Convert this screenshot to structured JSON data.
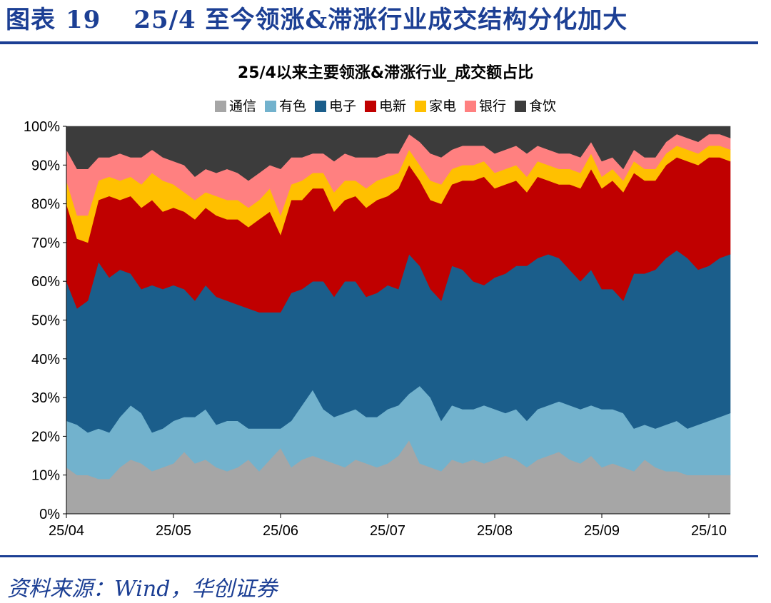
{
  "figure": {
    "label": "图表",
    "number": "19",
    "title": "25/4 至今领涨&滞涨行业成交结构分化加大",
    "source": "资料来源：Wind，华创证券"
  },
  "colors": {
    "brand": "#1c3f94"
  },
  "chart_data": {
    "type": "area",
    "stacked": true,
    "normalized": true,
    "title": "25/4以来主要领涨&滞涨行业_成交额占比",
    "legend_position": "top",
    "y_ticks": [
      "0%",
      "10%",
      "20%",
      "30%",
      "40%",
      "50%",
      "60%",
      "70%",
      "80%",
      "90%",
      "100%"
    ],
    "ylim": [
      0,
      100
    ],
    "x_ticks": [
      {
        "label": "25/04",
        "index": 0
      },
      {
        "label": "25/05",
        "index": 20
      },
      {
        "label": "25/06",
        "index": 40
      },
      {
        "label": "25/07",
        "index": 60
      },
      {
        "label": "25/08",
        "index": 80
      },
      {
        "label": "25/09",
        "index": 100
      },
      {
        "label": "25/10",
        "index": 120
      }
    ],
    "x": [
      0,
      2,
      4,
      6,
      8,
      10,
      12,
      14,
      16,
      18,
      20,
      22,
      24,
      26,
      28,
      30,
      32,
      34,
      36,
      38,
      40,
      42,
      44,
      46,
      48,
      50,
      52,
      54,
      56,
      58,
      60,
      62,
      64,
      66,
      68,
      70,
      72,
      74,
      76,
      78,
      80,
      82,
      84,
      86,
      88,
      90,
      92,
      94,
      96,
      98,
      100,
      102,
      104,
      106,
      108,
      110,
      112,
      114,
      116,
      118,
      120,
      122,
      124
    ],
    "series": [
      {
        "name": "通信",
        "color": "#a6a6a6",
        "values": [
          12,
          10,
          10,
          9,
          9,
          12,
          14,
          13,
          11,
          12,
          13,
          16,
          13,
          14,
          12,
          11,
          12,
          14,
          11,
          14,
          17,
          12,
          14,
          15,
          14,
          13,
          12,
          14,
          13,
          12,
          13,
          15,
          19,
          13,
          12,
          11,
          14,
          13,
          14,
          13,
          14,
          15,
          14,
          12,
          14,
          15,
          16,
          14,
          13,
          15,
          12,
          13,
          12,
          11,
          14,
          12,
          11,
          11,
          10,
          10,
          10,
          10,
          10
        ]
      },
      {
        "name": "有色",
        "color": "#72b2cd",
        "values": [
          12,
          13,
          11,
          13,
          12,
          13,
          14,
          13,
          10,
          10,
          11,
          9,
          12,
          13,
          11,
          13,
          12,
          8,
          11,
          8,
          5,
          12,
          14,
          17,
          13,
          12,
          14,
          13,
          12,
          13,
          14,
          13,
          12,
          20,
          18,
          13,
          14,
          14,
          13,
          15,
          13,
          11,
          13,
          12,
          13,
          13,
          13,
          14,
          14,
          13,
          15,
          14,
          14,
          11,
          9,
          10,
          12,
          13,
          12,
          13,
          14,
          15,
          16
        ]
      },
      {
        "name": "电子",
        "color": "#1b5e8b",
        "values": [
          36,
          30,
          34,
          43,
          40,
          38,
          34,
          32,
          38,
          36,
          35,
          33,
          30,
          32,
          33,
          31,
          30,
          31,
          30,
          30,
          30,
          33,
          30,
          28,
          33,
          31,
          34,
          33,
          31,
          32,
          32,
          30,
          36,
          31,
          28,
          31,
          36,
          36,
          33,
          31,
          34,
          36,
          37,
          40,
          39,
          39,
          37,
          35,
          33,
          35,
          31,
          31,
          29,
          40,
          39,
          41,
          43,
          44,
          44,
          40,
          40,
          41,
          41
        ]
      },
      {
        "name": "电新",
        "color": "#c00000",
        "values": [
          20,
          18,
          15,
          16,
          21,
          18,
          20,
          21,
          22,
          20,
          20,
          20,
          21,
          20,
          21,
          21,
          22,
          21,
          24,
          26,
          20,
          24,
          23,
          24,
          24,
          22,
          21,
          22,
          23,
          24,
          23,
          26,
          23,
          22,
          23,
          25,
          21,
          23,
          26,
          28,
          23,
          23,
          22,
          19,
          21,
          19,
          19,
          22,
          24,
          26,
          26,
          28,
          28,
          26,
          24,
          23,
          24,
          24,
          25,
          27,
          28,
          26,
          24
        ]
      },
      {
        "name": "家电",
        "color": "#ffc000",
        "values": [
          6,
          6,
          7,
          5,
          5,
          5,
          5,
          6,
          7,
          8,
          6,
          5,
          5,
          4,
          5,
          5,
          5,
          5,
          5,
          6,
          5,
          4,
          5,
          4,
          4,
          5,
          5,
          4,
          5,
          5,
          5,
          4,
          4,
          4,
          5,
          5,
          4,
          4,
          4,
          4,
          4,
          4,
          4,
          4,
          4,
          4,
          4,
          4,
          4,
          4,
          3,
          3,
          3,
          3,
          3,
          3,
          3,
          3,
          3,
          3,
          3,
          3,
          3
        ]
      },
      {
        "name": "银行",
        "color": "#ff8080",
        "values": [
          8,
          12,
          12,
          6,
          5,
          7,
          5,
          7,
          6,
          6,
          6,
          7,
          6,
          6,
          6,
          8,
          7,
          7,
          7,
          6,
          12,
          7,
          6,
          5,
          5,
          8,
          7,
          6,
          8,
          6,
          6,
          5,
          4,
          6,
          7,
          7,
          5,
          5,
          5,
          4,
          5,
          5,
          5,
          6,
          4,
          4,
          4,
          4,
          4,
          3,
          4,
          3,
          3,
          3,
          3,
          3,
          3,
          3,
          3,
          3,
          3,
          3,
          3
        ]
      },
      {
        "name": "食饮",
        "color": "#3c3c3c",
        "values": [
          6,
          11,
          11,
          8,
          8,
          7,
          8,
          8,
          6,
          8,
          9,
          10,
          13,
          11,
          12,
          11,
          12,
          14,
          12,
          10,
          11,
          8,
          8,
          7,
          7,
          9,
          7,
          8,
          8,
          8,
          7,
          7,
          2,
          4,
          7,
          8,
          6,
          5,
          5,
          5,
          7,
          6,
          5,
          7,
          5,
          6,
          7,
          7,
          8,
          4,
          9,
          8,
          11,
          6,
          8,
          8,
          4,
          2,
          3,
          4,
          2,
          2,
          3
        ]
      }
    ]
  }
}
